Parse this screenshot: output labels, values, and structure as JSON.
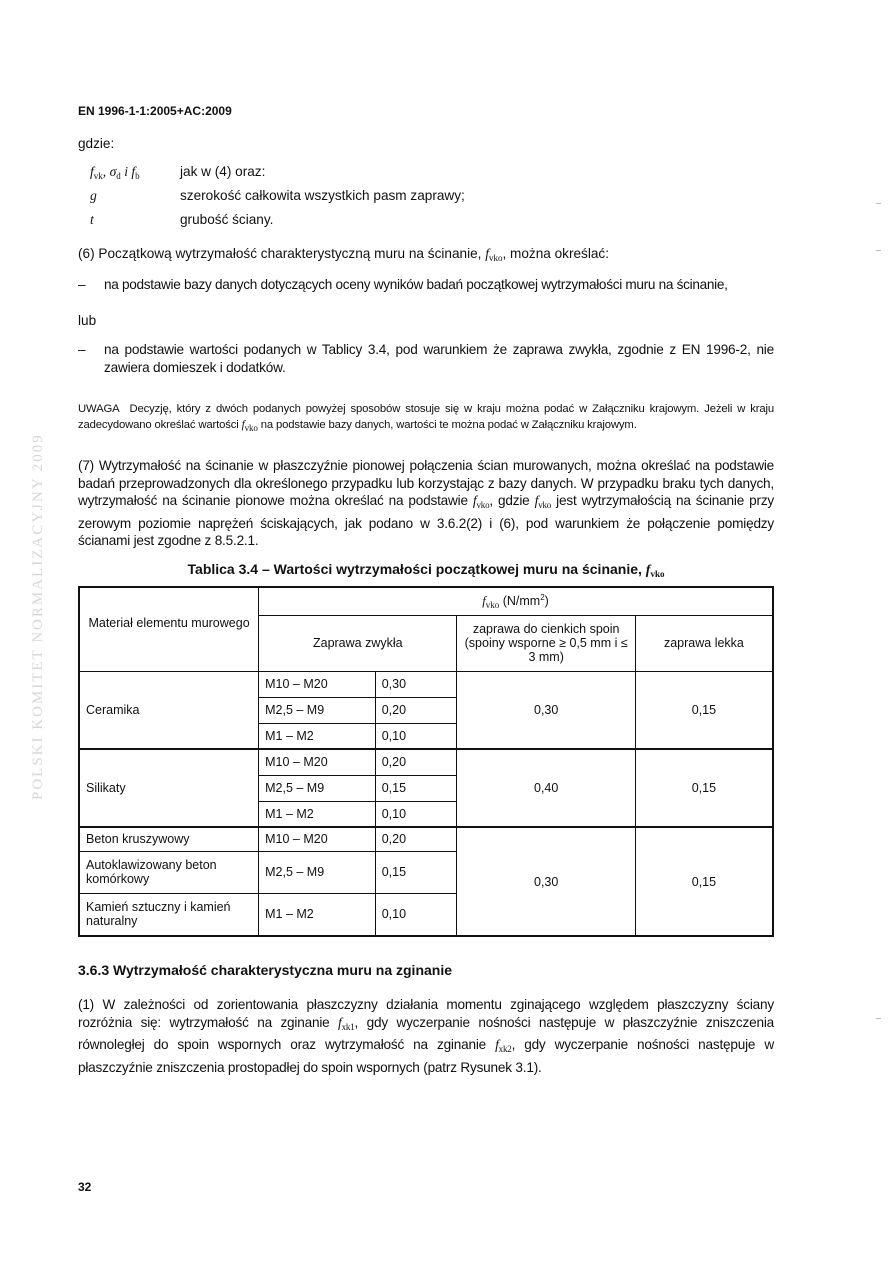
{
  "header": "EN 1996-1-1:2005+AC:2009",
  "gdzie": "gdzie:",
  "defs": [
    {
      "sym": "f",
      "sub": "vk",
      "sym2": ", σ",
      "sub2": "d",
      "sym3": " i f",
      "sub3": "b",
      "text": "jak w (4) oraz:"
    },
    {
      "sym": "g",
      "text": "szerokość całkowita wszystkich pasm zaprawy;"
    },
    {
      "sym": "t",
      "text": "grubość ściany."
    }
  ],
  "p6": {
    "before": "(6) Początkową wytrzymałość charakterystyczną muru na ścinanie, ",
    "sym": "f",
    "sub": "vko",
    "after": ", można określać:"
  },
  "dash": "–",
  "bullet1": "na podstawie bazy danych dotyczących oceny wyników badań początkowej wytrzymałości muru na ścinanie,",
  "lub": "lub",
  "bullet2": "na podstawie wartości podanych w Tablicy 3.4, pod warunkiem że zaprawa zwykła, zgodnie z EN 1996-2, nie zawiera domieszek i dodatków.",
  "note": {
    "label": "UWAGA",
    "t1": "Decyzję, który z dwóch podanych powyżej sposobów stosuje się w kraju można podać w Załączniku krajowym. Jeżeli w kraju zadecydowano określać wartości ",
    "sym": "f",
    "sub": "vko",
    "t2": " na podstawie bazy danych, wartości te można podać w Załączniku krajowym."
  },
  "p7": {
    "t1": "(7) Wytrzymałość na ścinanie w płaszczyźnie pionowej połączenia ścian murowanych, można określać na podstawie badań przeprowadzonych dla określonego przypadku lub korzystając z bazy danych. W przypadku braku tych danych, wytrzymałość na ścinanie pionowe można określać na podstawie ",
    "sym": "f",
    "sub": "vko",
    "t2": ", gdzie ",
    "t3": " jest wytrzymałością na ścinanie przy zerowym poziomie naprężeń ściskających, jak podano w 3.6.2(2) i (6), pod warunkiem że połączenie pomiędzy ścianami jest zgodne z 8.5.2.1."
  },
  "table": {
    "caption": "Tablica 3.4 – Wartości wytrzymałości początkowej muru na ścinanie, ",
    "caption_sym": "f",
    "caption_sub": "vko",
    "col_material": "Materiał elementu murowego",
    "col_fvko_sym": "f",
    "col_fvko_sub": "vko",
    "col_fvko_unit": " (N/mm",
    "col_fvko_sup": "2",
    "col_fvko_close": ")",
    "col_normal": "Zaprawa zwykła",
    "col_thin": "zaprawa do cienkich spoin (spoiny wsporne ≥ 0,5 mm i ≤ 3 mm)",
    "col_light": "zaprawa lekka",
    "rows": [
      {
        "material": "Ceramika",
        "mortar": "M10 – M20",
        "value": "0,30",
        "thin": "0,30",
        "light": "0,15"
      },
      {
        "mortar": "M2,5 – M9",
        "value": "0,20"
      },
      {
        "mortar": "M1 – M2",
        "value": "0,10"
      },
      {
        "material": "Silikaty",
        "mortar": "M10 – M20",
        "value": "0,20",
        "thin": "0,40",
        "light": "0,15"
      },
      {
        "mortar": "M2,5 – M9",
        "value": "0,15"
      },
      {
        "mortar": "M1 – M2",
        "value": "0,10"
      },
      {
        "material": "Beton kruszywowy",
        "mortar": "M10 – M20",
        "value": "0,20",
        "thin": "0,30",
        "light": "0,15"
      },
      {
        "material": "Autoklawizowany beton komórkowy",
        "mortar": "M2,5 – M9",
        "value": "0,15"
      },
      {
        "material": "Kamień sztuczny i kamień naturalny",
        "mortar": "M1 – M2",
        "value": "0,10"
      }
    ]
  },
  "section": "3.6.3  Wytrzymałość charakterystyczna muru na zginanie",
  "p1": {
    "t1": "(1) W zależności od zorientowania płaszczyzny działania momentu zginającego względem płaszczyzny ściany rozróżnia się: wytrzymałość na zginanie ",
    "sym": "f",
    "sub1": "xk1",
    "t2": ", gdy wyczerpanie nośności następuje w płaszczyźnie zniszczenia równoległej do spoin wspornych oraz wytrzymałość na zginanie ",
    "sub2": "xk2",
    "t3": ", gdy wyczerpanie nośności następuje w płaszczyźnie zniszczenia prostopadłej do spoin wspornych (patrz Rysunek 3.1)."
  },
  "page_number": "32",
  "watermark": "POLSKI KOMITET NORMALIZACYJNY 2009"
}
